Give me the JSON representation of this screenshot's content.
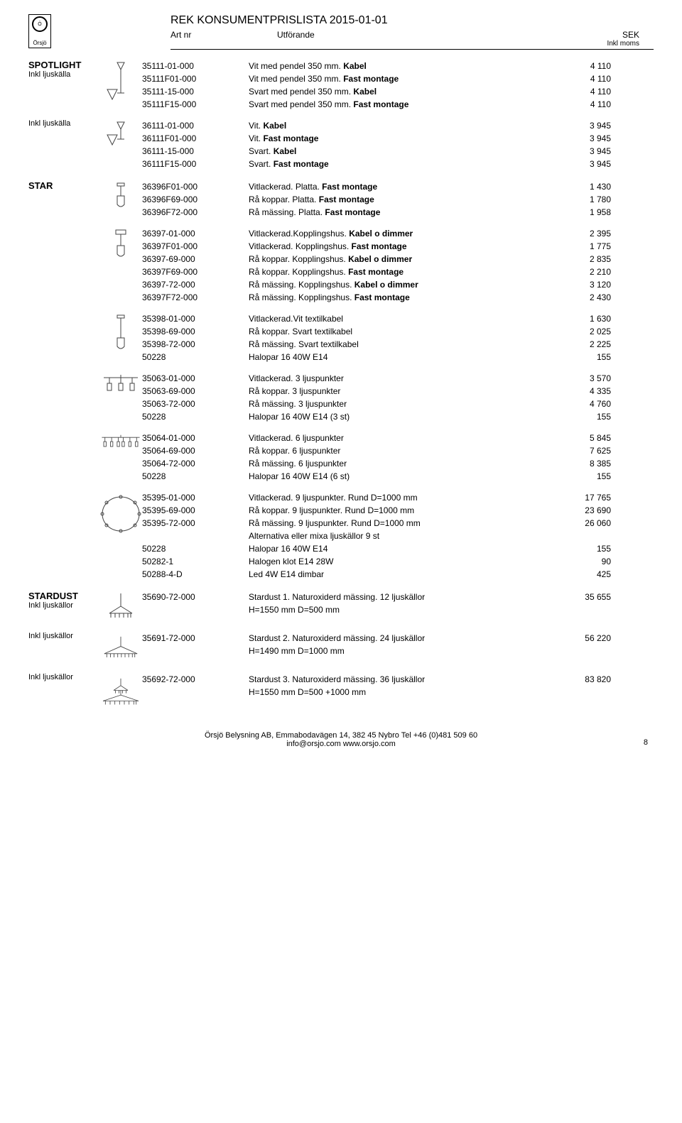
{
  "header": {
    "logo_text": "Örsjö",
    "main_title": "REK KONSUMENTPRISLISTA 2015-01-01",
    "col_art": "Art nr",
    "col_utf": "Utförande",
    "col_sek": "SEK",
    "col_sek_sub": "Inkl moms"
  },
  "sections": [
    {
      "groups": [
        {
          "category": "SPOTLIGHT",
          "sub": "Inkl ljuskälla",
          "icon": "spotlight-pendel",
          "rows": [
            {
              "art": "35111-01-000",
              "utf": "Vit med pendel 350 mm. ",
              "bold": "Kabel",
              "price": "4 110"
            },
            {
              "art": "35111F01-000",
              "utf": "Vit med pendel 350 mm. ",
              "bold": "Fast montage",
              "price": "4 110"
            },
            {
              "art": "35111-15-000",
              "utf": "Svart med pendel 350 mm. ",
              "bold": "Kabel",
              "price": "4 110"
            },
            {
              "art": "35111F15-000",
              "utf": "Svart med pendel 350 mm. ",
              "bold": "Fast montage",
              "price": "4 110"
            }
          ]
        },
        {
          "category": "",
          "sub": "Inkl ljuskälla",
          "icon": "spotlight-short",
          "rows": [
            {
              "art": "36111-01-000",
              "utf": "Vit. ",
              "bold": "Kabel",
              "price": "3 945"
            },
            {
              "art": "36111F01-000",
              "utf": "Vit. ",
              "bold": "Fast montage",
              "price": "3 945"
            },
            {
              "art": "36111-15-000",
              "utf": "Svart. ",
              "bold": "Kabel",
              "price": "3 945"
            },
            {
              "art": "36111F15-000",
              "utf": "Svart. ",
              "bold": "Fast montage",
              "price": "3 945"
            }
          ]
        }
      ]
    },
    {
      "groups": [
        {
          "category": "STAR",
          "sub": "",
          "icon": "star-single",
          "rows": [
            {
              "art": "36396F01-000",
              "utf": "Vitlackerad. Platta. ",
              "bold": "Fast montage",
              "price": "1 430"
            },
            {
              "art": "36396F69-000",
              "utf": "Rå koppar. Platta. ",
              "bold": "Fast montage",
              "price": "1 780"
            },
            {
              "art": "36396F72-000",
              "utf": "Rå mässing. Platta. ",
              "bold": "Fast montage",
              "price": "1 958"
            }
          ]
        },
        {
          "category": "",
          "sub": "",
          "icon": "star-koppling",
          "rows": [
            {
              "art": "36397-01-000",
              "utf": "Vitlackerad.Kopplingshus. ",
              "bold": "Kabel o dimmer",
              "price": "2 395"
            },
            {
              "art": "36397F01-000",
              "utf": "Vitlackerad. Kopplingshus. ",
              "bold": "Fast montage",
              "price": "1 775"
            },
            {
              "art": "36397-69-000",
              "utf": "Rå koppar. Kopplingshus. ",
              "bold": "Kabel o dimmer",
              "price": "2 835"
            },
            {
              "art": "36397F69-000",
              "utf": "Rå koppar. Kopplingshus. ",
              "bold": "Fast montage",
              "price": "2 210"
            },
            {
              "art": "36397-72-000",
              "utf": "Rå mässing. Kopplingshus. ",
              "bold": "Kabel o dimmer",
              "price": "3 120"
            },
            {
              "art": "36397F72-000",
              "utf": "Rå mässing. Kopplingshus. ",
              "bold": "Fast montage",
              "price": "2 430"
            }
          ]
        },
        {
          "category": "",
          "sub": "",
          "icon": "star-textil",
          "rows": [
            {
              "art": "35398-01-000",
              "utf": "Vitlackerad.Vit textilkabel",
              "bold": "",
              "price": "1 630"
            },
            {
              "art": "35398-69-000",
              "utf": "Rå koppar. Svart textilkabel",
              "bold": "",
              "price": "2 025"
            },
            {
              "art": "35398-72-000",
              "utf": "Rå mässing. Svart textilkabel",
              "bold": "",
              "price": "2 225"
            },
            {
              "art": "50228",
              "utf": "Halopar 16 40W E14",
              "bold": "",
              "price": "155"
            }
          ]
        },
        {
          "category": "",
          "sub": "",
          "icon": "star-3",
          "rows": [
            {
              "art": "35063-01-000",
              "utf": "Vitlackerad. 3 ljuspunkter",
              "bold": "",
              "price": "3 570"
            },
            {
              "art": "35063-69-000",
              "utf": "Rå koppar. 3 ljuspunkter",
              "bold": "",
              "price": "4 335"
            },
            {
              "art": "35063-72-000",
              "utf": "Rå mässing. 3 ljuspunkter",
              "bold": "",
              "price": "4 760"
            },
            {
              "art": "50228",
              "utf": "Halopar 16 40W E14 (3 st)",
              "bold": "",
              "price": "155"
            }
          ]
        },
        {
          "category": "",
          "sub": "",
          "icon": "star-6",
          "rows": [
            {
              "art": "35064-01-000",
              "utf": "Vitlackerad. 6 ljuspunkter",
              "bold": "",
              "price": "5 845"
            },
            {
              "art": "35064-69-000",
              "utf": "Rå koppar. 6 ljuspunkter",
              "bold": "",
              "price": "7 625"
            },
            {
              "art": "35064-72-000",
              "utf": "Rå mässing. 6 ljuspunkter",
              "bold": "",
              "price": "8 385"
            },
            {
              "art": "50228",
              "utf": "Halopar 16 40W E14 (6 st)",
              "bold": "",
              "price": "155"
            }
          ]
        },
        {
          "category": "",
          "sub": "",
          "icon": "star-ring",
          "rows": [
            {
              "art": "35395-01-000",
              "utf": "Vitlackerad. 9 ljuspunkter. Rund D=1000 mm",
              "bold": "",
              "price": "17 765"
            },
            {
              "art": "35395-69-000",
              "utf": "Rå koppar. 9 ljuspunkter. Rund D=1000 mm",
              "bold": "",
              "price": "23 690"
            },
            {
              "art": "35395-72-000",
              "utf": "Rå mässing. 9 ljuspunkter. Rund D=1000 mm",
              "bold": "",
              "price": "26 060"
            },
            {
              "art": "",
              "utf": "Alternativa eller mixa ljuskällor 9 st",
              "bold": "",
              "price": ""
            },
            {
              "art": "50228",
              "utf": "Halopar 16 40W E14",
              "bold": "",
              "price": "155"
            },
            {
              "art": "50282-1",
              "utf": "Halogen klot E14 28W",
              "bold": "",
              "price": "90"
            },
            {
              "art": "50288-4-D",
              "utf": "Led 4W E14 dimbar",
              "bold": "",
              "price": "425"
            }
          ]
        }
      ]
    },
    {
      "groups": [
        {
          "category": "STARDUST",
          "sub": "Inkl ljuskällor",
          "icon": "stardust-1",
          "rows": [
            {
              "art": "35690-72-000",
              "utf": "Stardust 1. Naturoxiderd mässing. 12 ljuskällor",
              "bold": "",
              "price": "35 655"
            },
            {
              "art": "",
              "utf": "H=1550 mm D=500 mm",
              "bold": "",
              "price": ""
            }
          ]
        },
        {
          "category": "",
          "sub": "Inkl ljuskällor",
          "icon": "stardust-2",
          "rows": [
            {
              "art": "35691-72-000",
              "utf": "Stardust 2. Naturoxiderd mässing. 24 ljuskällor",
              "bold": "",
              "price": "56 220"
            },
            {
              "art": "",
              "utf": "H=1490 mm D=1000 mm",
              "bold": "",
              "price": ""
            }
          ]
        },
        {
          "category": "",
          "sub": "Inkl ljuskällor",
          "icon": "stardust-3",
          "rows": [
            {
              "art": "35692-72-000",
              "utf": "Stardust 3. Naturoxiderd mässing. 36 ljuskällor",
              "bold": "",
              "price": "83 820"
            },
            {
              "art": "",
              "utf": "H=1550 mm D=500 +1000 mm",
              "bold": "",
              "price": ""
            }
          ]
        }
      ]
    }
  ],
  "footer": {
    "line1": "Örsjö Belysning AB, Emmabodavägen 14, 382 45 Nybro Tel +46 (0)481 509 60",
    "line2": "info@orsjo.com  www.orsjo.com",
    "page": "8"
  },
  "icons": {
    "spotlight-pendel": "<svg width='46' height='60' viewBox='0 0 46 60'><polygon points='18,2 28,2 23,12'/><line x1='23' y1='12' x2='23' y2='45'/><polygon points='4,40 18,40 11,54'/><line x1='18' y1='45' x2='28' y2='45'/></svg>",
    "spotlight-short": "<svg width='46' height='44' viewBox='0 0 46 44'><polygon points='18,2 28,2 23,12'/><line x1='23' y1='12' x2='23' y2='26'/><polygon points='4,20 18,20 11,34'/><line x1='18' y1='26' x2='28' y2='26'/></svg>",
    "star-single": "<svg width='30' height='40' viewBox='0 0 30 40'><rect x='10' y='2' width='10' height='4'/><line x1='15' y1='6' x2='15' y2='20'/><path d='M10 20 L20 20 L20 32 Q15 38 10 32 Z'/></svg>",
    "star-koppling": "<svg width='30' height='46' viewBox='0 0 30 46'><rect x='8' y='2' width='14' height='6'/><line x1='15' y1='8' x2='15' y2='24'/><path d='M10 24 L20 24 L20 36 Q15 42 10 36 Z'/></svg>",
    "star-textil": "<svg width='30' height='54' viewBox='0 0 30 54'><rect x='10' y='2' width='10' height='4'/><line x1='15' y1='6' x2='15' y2='34'/><path d='M10 34 L20 34 L20 46 Q15 52 10 46 Z'/></svg>",
    "star-3": "<svg width='60' height='30' viewBox='0 0 60 30'><line x1='6' y1='6' x2='54' y2='6'/><line x1='30' y1='2' x2='30' y2='6'/><g><line x1='14' y1='6' x2='14' y2='14'/><rect x='11' y='14' width='6' height='10'/></g><g><line x1='30' y1='6' x2='30' y2='14'/><rect x='27' y='14' width='6' height='10'/></g><g><line x1='46' y1='6' x2='46' y2='14'/><rect x='43' y='14' width='6' height='10'/></g></svg>",
    "star-6": "<svg width='70' height='26' viewBox='0 0 70 26'><line x1='4' y1='5' x2='66' y2='5'/><line x1='35' y1='1' x2='35' y2='5'/><g><line x1='9' y1='5' x2='9' y2='12'/><rect x='7' y='12' width='4' height='8'/></g><g><line x1='20' y1='5' x2='20' y2='12'/><rect x='18' y='12' width='4' height='8'/></g><g><line x1='31' y1='5' x2='31' y2='12'/><rect x='29' y='12' width='4' height='8'/></g><g><line x1='39' y1='5' x2='39' y2='12'/><rect x='37' y='12' width='4' height='8'/></g><g><line x1='50' y1='5' x2='50' y2='12'/><rect x='48' y='12' width='4' height='8'/></g><g><line x1='61' y1='5' x2='61' y2='12'/><rect x='59' y='12' width='4' height='8'/></g></svg>",
    "star-ring": "<svg width='60' height='60' viewBox='0 0 60 60'><ellipse cx='30' cy='30' rx='26' ry='24'/><circle cx='30' cy='6' r='2'/><circle cx='50' cy='14' r='2'/><circle cx='56' cy='30' r='2'/><circle cx='50' cy='46' r='2'/><circle cx='30' cy='54' r='2'/><circle cx='10' cy='46' r='2'/><circle cx='4' cy='30' r='2'/><circle cx='10' cy='14' r='2'/></svg>",
    "stardust-1": "<svg width='60' height='44' viewBox='0 0 60 44'><line x1='30' y1='2' x2='30' y2='20'/><line x1='14' y1='30' x2='46' y2='30'/><line x1='30' y1='20' x2='14' y2='30'/><line x1='30' y1='20' x2='46' y2='30'/><line x1='16' y1='30' x2='16' y2='36'/><line x1='22' y1='30' x2='22' y2='36'/><line x1='28' y1='30' x2='28' y2='36'/><line x1='34' y1='30' x2='34' y2='36'/><line x1='40' y1='30' x2='40' y2='36'/><line x1='44' y1='30' x2='44' y2='36'/></svg>",
    "stardust-2": "<svg width='70' height='44' viewBox='0 0 70 44'><line x1='35' y1='2' x2='35' y2='18'/><line x1='8' y1='30' x2='62' y2='30'/><line x1='35' y1='18' x2='8' y2='30'/><line x1='35' y1='18' x2='62' y2='30'/><line x1='12' y1='30' x2='12' y2='36'/><line x1='18' y1='30' x2='18' y2='36'/><line x1='24' y1='30' x2='24' y2='36'/><line x1='30' y1='30' x2='30' y2='36'/><line x1='36' y1='30' x2='36' y2='36'/><line x1='42' y1='30' x2='42' y2='36'/><line x1='48' y1='30' x2='48' y2='36'/><line x1='54' y1='30' x2='54' y2='36'/><line x1='58' y1='30' x2='58' y2='36'/></svg>",
    "stardust-3": "<svg width='72' height='50' viewBox='0 0 72 50'><line x1='36' y1='2' x2='36' y2='14'/><line x1='24' y1='22' x2='48' y2='22'/><line x1='36' y1='14' x2='24' y2='22'/><line x1='36' y1='14' x2='48' y2='22'/><line x1='36' y1='22' x2='36' y2='30'/><line x1='6' y1='40' x2='66' y2='40'/><line x1='36' y1='30' x2='6' y2='40'/><line x1='36' y1='30' x2='66' y2='40'/><line x1='10' y1='40' x2='10' y2='46'/><line x1='18' y1='40' x2='18' y2='46'/><line x1='26' y1='40' x2='26' y2='46'/><line x1='34' y1='40' x2='34' y2='46'/><line x1='42' y1='40' x2='42' y2='46'/><line x1='50' y1='40' x2='50' y2='46'/><line x1='58' y1='40' x2='58' y2='46'/><line x1='62' y1='40' x2='62' y2='46'/><line x1='27' y1='22' x2='27' y2='27'/><line x1='33' y1='22' x2='33' y2='27'/><line x1='39' y1='22' x2='39' y2='27'/><line x1='45' y1='22' x2='45' y2='27'/></svg>"
  }
}
